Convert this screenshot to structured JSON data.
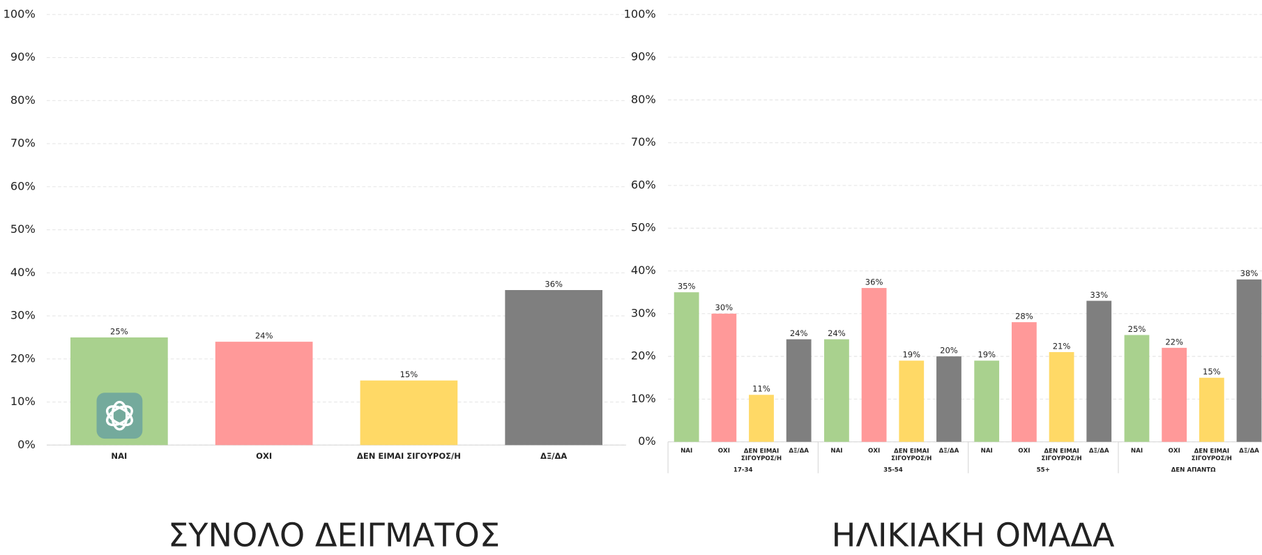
{
  "chart_data": [
    {
      "type": "bar",
      "title": "ΣΥΝΟΛΟ ΔΕΙΓΜΑΤΟΣ",
      "categories": [
        "ΝΑΙ",
        "ΟΧΙ",
        "ΔΕΝ ΕΙΜΑΙ ΣΙΓΟΥΡΟΣ/Η",
        "ΔΞ/ΔΑ"
      ],
      "values": [
        25,
        24,
        15,
        36
      ],
      "value_labels": [
        "25%",
        "24%",
        "15%",
        "36%"
      ],
      "colors": [
        "#a9d18e",
        "#ff9999",
        "#ffd966",
        "#7f7f7f"
      ],
      "ylim": [
        0,
        100
      ],
      "yticks": [
        {
          "value": 0,
          "label": "0%"
        },
        {
          "value": 10,
          "label": "10%"
        },
        {
          "value": 20,
          "label": "20%"
        },
        {
          "value": 30,
          "label": "30%"
        },
        {
          "value": 40,
          "label": "40%"
        },
        {
          "value": 50,
          "label": "50%"
        },
        {
          "value": 60,
          "label": "60%"
        },
        {
          "value": 70,
          "label": "70%"
        },
        {
          "value": 80,
          "label": "80%"
        },
        {
          "value": 90,
          "label": "90%"
        },
        {
          "value": 100,
          "label": "100%"
        }
      ],
      "grid": true
    },
    {
      "type": "grouped_bar",
      "title": "ΗΛΙΚΙΑΚΗ ΟΜΑΔΑ",
      "groups": [
        {
          "name": "17-34",
          "categories": [
            "ΝΑΙ",
            "ΟΧΙ",
            "ΔΕΝ ΕΙΜΑΙ ΣΙΓΟΥΡΟΣ/Η",
            "ΔΞ/ΔΑ"
          ],
          "values": [
            35,
            30,
            11,
            24
          ],
          "value_labels": [
            "35%",
            "30%",
            "11%",
            "24%"
          ]
        },
        {
          "name": "35-54",
          "categories": [
            "ΝΑΙ",
            "ΟΧΙ",
            "ΔΕΝ ΕΙΜΑΙ ΣΙΓΟΥΡΟΣ/Η",
            "ΔΞ/ΔΑ"
          ],
          "values": [
            24,
            36,
            19,
            20
          ],
          "value_labels": [
            "24%",
            "36%",
            "19%",
            "20%"
          ]
        },
        {
          "name": "55+",
          "categories": [
            "ΝΑΙ",
            "ΟΧΙ",
            "ΔΕΝ ΕΙΜΑΙ ΣΙΓΟΥΡΟΣ/Η",
            "ΔΞ/ΔΑ"
          ],
          "values": [
            19,
            28,
            21,
            33
          ],
          "value_labels": [
            "19%",
            "28%",
            "21%",
            "33%"
          ]
        },
        {
          "name": "ΔΕΝ ΑΠΑΝΤΩ",
          "categories": [
            "ΝΑΙ",
            "ΟΧΙ",
            "ΔΕΝ ΕΙΜΑΙ ΣΙΓΟΥΡΟΣ/Η",
            "ΔΞ/ΔΑ"
          ],
          "values": [
            25,
            22,
            15,
            38
          ],
          "value_labels": [
            "25%",
            "22%",
            "15%",
            "38%"
          ]
        }
      ],
      "colors": [
        "#a9d18e",
        "#ff9999",
        "#ffd966",
        "#7f7f7f"
      ],
      "ylim": [
        0,
        100
      ],
      "yticks": [
        {
          "value": 0,
          "label": "0%"
        },
        {
          "value": 10,
          "label": "10%"
        },
        {
          "value": 20,
          "label": "20%"
        },
        {
          "value": 30,
          "label": "30%"
        },
        {
          "value": 40,
          "label": "40%"
        },
        {
          "value": 50,
          "label": "50%"
        },
        {
          "value": 60,
          "label": "60%"
        },
        {
          "value": 70,
          "label": "70%"
        },
        {
          "value": 80,
          "label": "80%"
        },
        {
          "value": 90,
          "label": "90%"
        },
        {
          "value": 100,
          "label": "100%"
        }
      ],
      "grid": true
    }
  ]
}
